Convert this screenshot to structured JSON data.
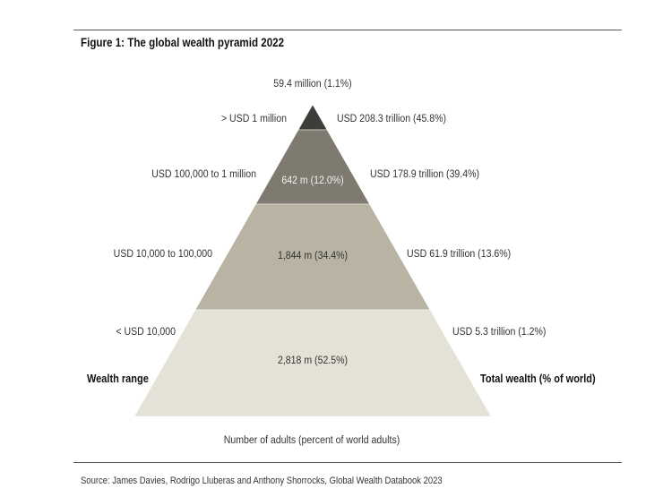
{
  "title": "Figure 1: The global wealth pyramid 2022",
  "source": "Source: James Davies, Rodrigo Lluberas and Anthony Shorrocks, Global Wealth Databook 2023",
  "chart_data": {
    "type": "pyramid",
    "title": "Figure 1: The global wealth pyramid 2022",
    "left_axis_label": "Wealth range",
    "right_axis_label": "Total wealth (% of world)",
    "bottom_label": "Number of adults (percent of world adults)",
    "tiers": [
      {
        "wealth_range": "> USD 1 million",
        "adults_label": "59.4 million (1.1%)",
        "adults_millions": 59.4,
        "adults_pct": 1.1,
        "wealth_label": "USD 208.3 trillion (45.8%)",
        "wealth_trillions": 208.3,
        "wealth_pct": 45.8,
        "color": "#3f3d39"
      },
      {
        "wealth_range": "USD 100,000  to 1 million",
        "adults_label": "642 m (12.0%)",
        "adults_millions": 642,
        "adults_pct": 12.0,
        "wealth_label": "USD 178.9 trillion (39.4%)",
        "wealth_trillions": 178.9,
        "wealth_pct": 39.4,
        "color": "#7e7a6f"
      },
      {
        "wealth_range": "USD 10,000  to 100,000",
        "adults_label": "1,844 m (34.4%)",
        "adults_millions": 1844,
        "adults_pct": 34.4,
        "wealth_label": "USD 61.9 trillion (13.6%)",
        "wealth_trillions": 61.9,
        "wealth_pct": 13.6,
        "color": "#b8b3a2"
      },
      {
        "wealth_range": "< USD 10,000",
        "adults_label": "2,818 m (52.5%)",
        "adults_millions": 2818,
        "adults_pct": 52.5,
        "wealth_label": "USD 5.3 trillion (1.2%)",
        "wealth_trillions": 5.3,
        "wealth_pct": 1.2,
        "color": "#e4e1d6"
      }
    ]
  }
}
